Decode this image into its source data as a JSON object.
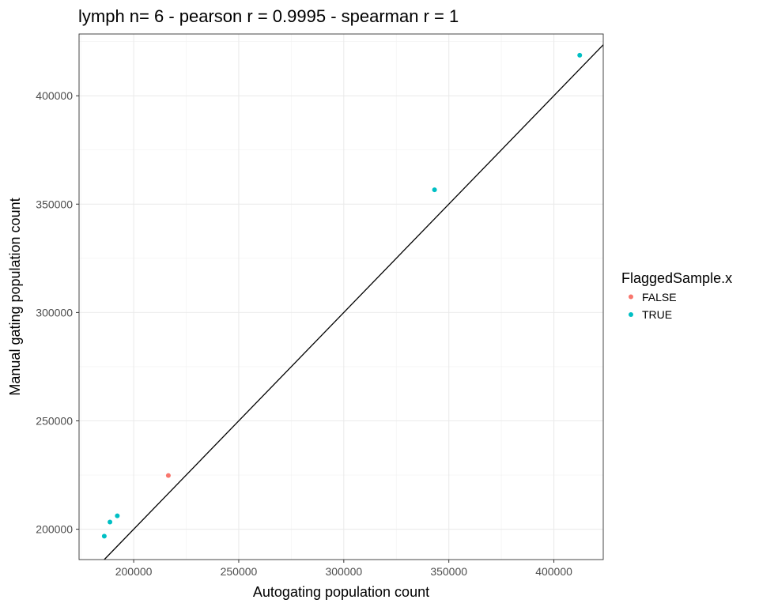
{
  "chart_data": {
    "type": "scatter",
    "title": "lymph n= 6 - pearson r = 0.9995 - spearman r = 1",
    "xlabel": "Autogating population count",
    "ylabel": "Manual gating population count",
    "xlim": [
      174000,
      423500
    ],
    "ylim": [
      186000,
      428500
    ],
    "x_ticks": [
      200000,
      250000,
      300000,
      350000,
      400000
    ],
    "x_tick_labels": [
      "200000",
      "250000",
      "300000",
      "350000",
      "400000"
    ],
    "y_ticks": [
      200000,
      250000,
      300000,
      350000,
      400000
    ],
    "y_tick_labels": [
      "200000",
      "250000",
      "300000",
      "350000",
      "400000"
    ],
    "grid": true,
    "reference_line": {
      "type": "identity",
      "slope": 1,
      "intercept": 0,
      "color": "#000000"
    },
    "legend": {
      "title": "FlaggedSample.x",
      "placement": "right",
      "entries": [
        {
          "label": "FALSE",
          "color": "#F8766D"
        },
        {
          "label": "TRUE",
          "color": "#00BFC4"
        }
      ]
    },
    "series": [
      {
        "name": "FALSE",
        "color": "#F8766D",
        "points": [
          [
            216500,
            224800
          ]
        ]
      },
      {
        "name": "TRUE",
        "color": "#00BFC4",
        "points": [
          [
            186000,
            196800
          ],
          [
            188700,
            203300
          ],
          [
            192200,
            206200
          ],
          [
            343200,
            356600
          ],
          [
            412300,
            418700
          ]
        ]
      }
    ]
  }
}
